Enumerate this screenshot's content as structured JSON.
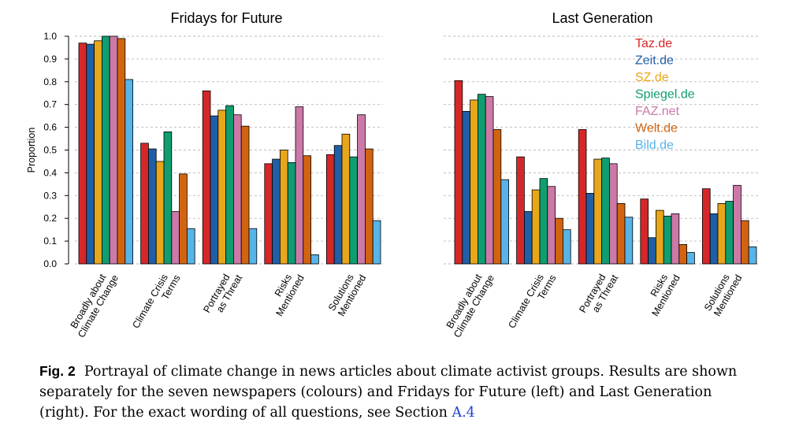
{
  "chart_data": [
    {
      "type": "bar",
      "title": "Fridays for Future",
      "ylabel": "Proportion",
      "xlabel": "",
      "ylim": [
        0,
        1
      ],
      "yticks": [
        "0.0",
        "0.1",
        "0.2",
        "0.3",
        "0.4",
        "0.5",
        "0.6",
        "0.7",
        "0.8",
        "0.9",
        "1.0"
      ],
      "grid": "horizontal dashed",
      "categories": [
        [
          "Broadly about",
          "Climate Change"
        ],
        [
          "Climate Crisis",
          "Terms"
        ],
        [
          "Portrayed",
          "as Threat"
        ],
        [
          "Risks",
          "Mentioned"
        ],
        [
          "Solutions",
          "Mentioned"
        ]
      ],
      "series": [
        {
          "name": "Taz.de",
          "color": "#d62728",
          "values": [
            0.97,
            0.53,
            0.76,
            0.44,
            0.48
          ]
        },
        {
          "name": "Zeit.de",
          "color": "#1f5fa8",
          "values": [
            0.965,
            0.505,
            0.65,
            0.46,
            0.52
          ]
        },
        {
          "name": "SZ.de",
          "color": "#e8a61a",
          "values": [
            0.98,
            0.45,
            0.675,
            0.5,
            0.57
          ]
        },
        {
          "name": "Spiegel.de",
          "color": "#109d6f",
          "values": [
            1.0,
            0.58,
            0.695,
            0.445,
            0.47
          ]
        },
        {
          "name": "FAZ.net",
          "color": "#cc79a7",
          "values": [
            1.0,
            0.23,
            0.655,
            0.69,
            0.655
          ]
        },
        {
          "name": "Welt.de",
          "color": "#d2640f",
          "values": [
            0.99,
            0.395,
            0.605,
            0.475,
            0.505
          ]
        },
        {
          "name": "Bild.de",
          "color": "#56b4e9",
          "values": [
            0.81,
            0.155,
            0.155,
            0.04,
            0.19
          ]
        }
      ]
    },
    {
      "type": "bar",
      "title": "Last Generation",
      "ylim": [
        0,
        1
      ],
      "grid": "horizontal dashed",
      "legend": "top-right",
      "categories": [
        [
          "Broadly about",
          "Climate Change"
        ],
        [
          "Climate Crisis",
          "Terms"
        ],
        [
          "Portrayed",
          "as Threat"
        ],
        [
          "Risks",
          "Mentioned"
        ],
        [
          "Solutions",
          "Mentioned"
        ]
      ],
      "series": [
        {
          "name": "Taz.de",
          "color": "#d62728",
          "values": [
            0.805,
            0.47,
            0.59,
            0.285,
            0.33
          ]
        },
        {
          "name": "Zeit.de",
          "color": "#1f5fa8",
          "values": [
            0.67,
            0.23,
            0.31,
            0.115,
            0.22
          ]
        },
        {
          "name": "SZ.de",
          "color": "#e8a61a",
          "values": [
            0.72,
            0.325,
            0.46,
            0.235,
            0.265
          ]
        },
        {
          "name": "Spiegel.de",
          "color": "#109d6f",
          "values": [
            0.745,
            0.375,
            0.465,
            0.21,
            0.275
          ]
        },
        {
          "name": "FAZ.net",
          "color": "#cc79a7",
          "values": [
            0.735,
            0.34,
            0.44,
            0.22,
            0.345
          ]
        },
        {
          "name": "Welt.de",
          "color": "#d2640f",
          "values": [
            0.59,
            0.2,
            0.265,
            0.085,
            0.19
          ]
        },
        {
          "name": "Bild.de",
          "color": "#56b4e9",
          "values": [
            0.37,
            0.15,
            0.205,
            0.05,
            0.075
          ]
        }
      ]
    }
  ],
  "caption": {
    "label": "Fig. 2",
    "text": "Portrayal of climate change in news articles about climate activist groups. Results are shown separately for the seven newspapers (colours) and Fridays for Future (left) and Last Generation (right). For the exact wording of all questions, see Section",
    "ref": "A.4"
  }
}
